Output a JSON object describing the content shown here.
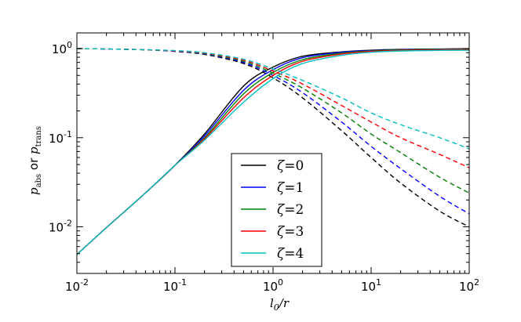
{
  "chart_data": {
    "type": "line",
    "title": "",
    "xscale": "log",
    "yscale": "log",
    "xlim": [
      0.01,
      100
    ],
    "ylim": [
      0.003,
      1.5
    ],
    "xlabel": "l_0/r",
    "xlabel_parts": {
      "main": "l",
      "sub": "0",
      "rest": "/r"
    },
    "ylabel_parts": {
      "p1": "p",
      "sub1": "abs",
      "or": " or ",
      "p2": "p",
      "sub2": "trans"
    },
    "x_ticks": [
      {
        "value": 0.01,
        "base": "10",
        "exp": "-2"
      },
      {
        "value": 0.1,
        "base": "10",
        "exp": "-1"
      },
      {
        "value": 1,
        "base": "10",
        "exp": "0"
      },
      {
        "value": 10,
        "base": "10",
        "exp": "1"
      },
      {
        "value": 100,
        "base": "10",
        "exp": "2"
      }
    ],
    "y_ticks": [
      {
        "value": 0.01,
        "base": "10",
        "exp": "-2"
      },
      {
        "value": 0.1,
        "base": "10",
        "exp": "-1"
      },
      {
        "value": 1,
        "base": "10",
        "exp": "0"
      }
    ],
    "x": [
      0.01,
      0.02,
      0.05,
      0.1,
      0.2,
      0.5,
      1,
      2,
      5,
      10,
      20,
      50,
      100
    ],
    "series": [
      {
        "name": "ζ=0",
        "label_symbol": "ζ",
        "label_value": "=0",
        "color": "#000000",
        "p_abs": [
          0.0049,
          0.0098,
          0.024,
          0.049,
          0.11,
          0.38,
          0.62,
          0.82,
          0.92,
          0.96,
          0.98,
          0.99,
          1.0
        ],
        "p_trans": [
          1.0,
          0.99,
          0.97,
          0.93,
          0.86,
          0.68,
          0.47,
          0.28,
          0.12,
          0.06,
          0.031,
          0.015,
          0.01
        ]
      },
      {
        "name": "ζ=1",
        "label_symbol": "ζ",
        "label_value": "=1",
        "color": "#0000ff",
        "p_abs": [
          0.0049,
          0.0098,
          0.024,
          0.049,
          0.105,
          0.34,
          0.58,
          0.79,
          0.91,
          0.95,
          0.97,
          0.985,
          0.99
        ],
        "p_trans": [
          1.0,
          0.99,
          0.97,
          0.93,
          0.87,
          0.7,
          0.5,
          0.32,
          0.15,
          0.08,
          0.045,
          0.022,
          0.014
        ]
      },
      {
        "name": "ζ=2",
        "label_symbol": "ζ",
        "label_value": "=2",
        "color": "#008000",
        "p_abs": [
          0.0049,
          0.0098,
          0.024,
          0.049,
          0.1,
          0.31,
          0.54,
          0.75,
          0.89,
          0.94,
          0.965,
          0.98,
          0.985
        ],
        "p_trans": [
          1.0,
          0.99,
          0.97,
          0.94,
          0.88,
          0.72,
          0.53,
          0.36,
          0.19,
          0.11,
          0.068,
          0.036,
          0.024
        ]
      },
      {
        "name": "ζ=3",
        "label_symbol": "ζ",
        "label_value": "=3",
        "color": "#ff0000",
        "p_abs": [
          0.0049,
          0.0098,
          0.024,
          0.049,
          0.097,
          0.28,
          0.5,
          0.72,
          0.87,
          0.93,
          0.955,
          0.97,
          0.975
        ],
        "p_trans": [
          1.0,
          0.99,
          0.97,
          0.94,
          0.89,
          0.74,
          0.56,
          0.4,
          0.23,
          0.15,
          0.1,
          0.065,
          0.046
        ]
      },
      {
        "name": "ζ=4",
        "label_symbol": "ζ",
        "label_value": "=4",
        "color": "#00bfbf",
        "p_abs": [
          0.0049,
          0.0098,
          0.024,
          0.049,
          0.094,
          0.25,
          0.46,
          0.68,
          0.84,
          0.91,
          0.94,
          0.955,
          0.96
        ],
        "p_trans": [
          1.0,
          0.99,
          0.97,
          0.95,
          0.9,
          0.76,
          0.59,
          0.44,
          0.28,
          0.19,
          0.14,
          0.1,
          0.075
        ]
      }
    ],
    "line_styles": {
      "p_abs": "solid",
      "p_trans": "dashed"
    },
    "legend_position": "lower-center"
  }
}
